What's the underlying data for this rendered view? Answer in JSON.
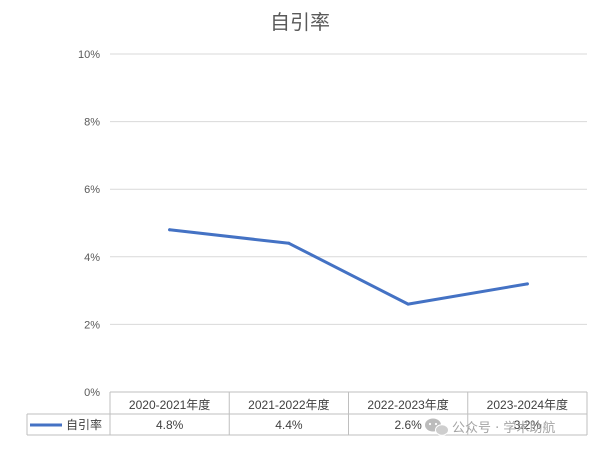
{
  "chart_data": {
    "type": "line",
    "title": "自引率",
    "categories": [
      "2020-2021年度",
      "2021-2022年度",
      "2022-2023年度",
      "2023-2024年度"
    ],
    "series": [
      {
        "name": "自引率",
        "values": [
          4.8,
          4.4,
          2.6,
          3.2
        ],
        "labels": [
          "4.8%",
          "4.4%",
          "2.6%",
          "3.2%"
        ],
        "color": "#4472C4"
      }
    ],
    "ylim": [
      0,
      10
    ],
    "yticks": [
      "0%",
      "2%",
      "4%",
      "6%",
      "8%",
      "10%"
    ],
    "grid": true,
    "data_table": true
  },
  "watermark": {
    "icon": "wechat-icon",
    "text": "公众号 · 学术助航"
  }
}
